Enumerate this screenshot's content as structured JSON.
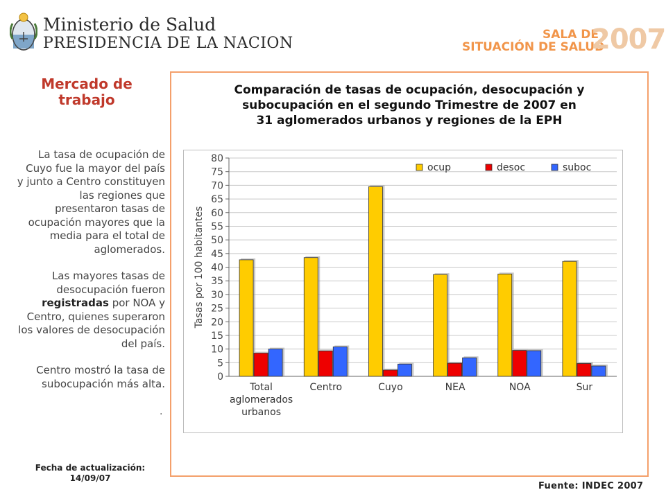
{
  "header": {
    "ministry_line1": "Ministerio de Salud",
    "ministry_line2": "PRESIDENCIA DE LA NACION",
    "sala_line1": "SALA DE",
    "sala_line2": "SITUACIÓN DE SALUD",
    "sala_year": "2007"
  },
  "sidebar": {
    "title_line1": "Mercado de",
    "title_line2": "trabajo",
    "p1": "La tasa de ocupación de Cuyo fue la mayor del país y junto a  Centro constituyen las regiones que presentaron tasas de ocupación  mayores que la media para el total de aglomerados.",
    "p2_part1": "Las mayores  tasas de desocupación fueron ",
    "p2_bold": "registradas",
    "p2_part2": " por NOA y Centro, quienes superaron los valores de desocupación del país.",
    "p3": "Centro mostró la tasa de subocupación más alta.",
    "dot": "."
  },
  "footer": {
    "update_label": "Fecha de actualización:",
    "update_date": "14/09/07",
    "source": "Fuente: INDEC 2007"
  },
  "colors": {
    "ocup": "#ffcc00",
    "desoc": "#ee0000",
    "suboc": "#3366ff",
    "frame": "#f4a06b",
    "title_red": "#c0392b"
  },
  "chart_data": {
    "type": "bar",
    "title_lines": [
      "Comparación de tasas de ocupación, desocupación y",
      "subocupación en el segundo Trimestre de 2007 en",
      "31 aglomerados urbanos y regiones de la  EPH"
    ],
    "ylabel": "Tasas por 100 habitantes",
    "xlabel": "",
    "ylim": [
      0,
      80
    ],
    "ytick_step": 5,
    "grid": true,
    "legend_position": "top-right",
    "categories": [
      [
        "Total",
        "aglomerados",
        "urbanos"
      ],
      [
        "Centro"
      ],
      [
        "Cuyo"
      ],
      [
        "NEA"
      ],
      [
        "NOA"
      ],
      [
        "Sur"
      ]
    ],
    "series": [
      {
        "name": "ocup",
        "values": [
          42.7,
          43.5,
          69.5,
          37.3,
          37.5,
          42.1
        ]
      },
      {
        "name": "desoc",
        "values": [
          8.5,
          9.3,
          2.3,
          4.8,
          9.5,
          4.7
        ]
      },
      {
        "name": "suboc",
        "values": [
          10.0,
          10.8,
          4.5,
          6.8,
          9.4,
          3.8
        ]
      }
    ]
  }
}
